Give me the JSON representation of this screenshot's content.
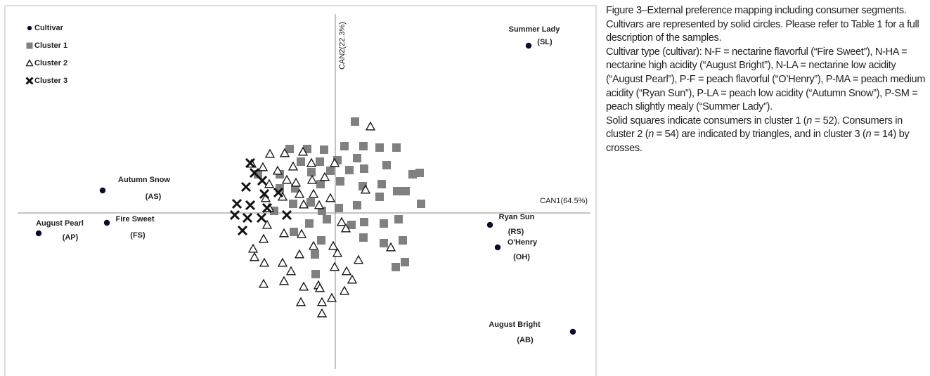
{
  "chart_data": {
    "type": "scatter",
    "xlabel": "CAN1(64.5%)",
    "ylabel": "CAN2(22.3%)",
    "xlim": [
      -4.52,
      3.63
    ],
    "ylim": [
      -2.22,
      2.83
    ],
    "legend": "upper left",
    "series": [
      {
        "name": "Cultivar",
        "marker": "circle",
        "color": "#0b0b2e",
        "x": [
          2.75,
          -3.31,
          -4.22,
          -3.25,
          2.2,
          2.31,
          3.38
        ],
        "y": [
          2.38,
          0.32,
          -0.29,
          -0.14,
          -0.17,
          -0.49,
          -1.69
        ],
        "labels": [
          "Summer Lady",
          "Autumn Snow",
          "August Pearl",
          "Fire Sweet",
          "Ryan Sun",
          "O'Henry",
          "August Bright"
        ],
        "abbreviations": [
          "(SL)",
          "(AS)",
          "(AP)",
          "(FS)",
          "(RS)",
          "(OH)",
          "(AB)"
        ]
      },
      {
        "name": "Cluster 1",
        "marker": "square",
        "color": "#808080",
        "x": [
          0.28,
          -0.65,
          -0.4,
          -0.16,
          0.13,
          0.4,
          0.63,
          0.87,
          -0.49,
          -0.22,
          0.03,
          0.31,
          0.41,
          0.73,
          1.1,
          1.2,
          -1.1,
          -0.79,
          -0.34,
          -0.07,
          0.2,
          0.66,
          0.88,
          1.0,
          -0.79,
          -0.57,
          -0.21,
          0.07,
          0.39,
          0.63,
          1.22,
          -0.87,
          -0.6,
          -0.35,
          -0.19,
          0.05,
          0.31,
          -0.37,
          -0.12,
          0.23,
          0.41,
          0.69,
          0.9,
          -0.59,
          -0.2,
          0.4,
          0.69,
          0.96,
          0.99,
          0.86,
          -0.28,
          -0.29
        ],
        "y": [
          1.3,
          0.91,
          0.91,
          0.9,
          0.95,
          0.95,
          0.93,
          0.93,
          0.73,
          0.73,
          0.75,
          0.78,
          0.63,
          0.68,
          0.55,
          0.57,
          0.55,
          0.55,
          0.58,
          0.6,
          0.61,
          0.41,
          0.31,
          0.31,
          0.35,
          0.35,
          0.41,
          0.45,
          0.38,
          0.23,
          0.13,
          0.03,
          0.13,
          0.15,
          0.03,
          0.07,
          0.11,
          -0.15,
          -0.09,
          -0.17,
          -0.13,
          -0.15,
          -0.09,
          -0.27,
          -0.39,
          -0.35,
          -0.43,
          -0.39,
          -0.7,
          -0.77,
          -0.87,
          -0.59
        ]
      },
      {
        "name": "Cluster 2",
        "marker": "triangle",
        "color": "#111111",
        "x": [
          0.5,
          -0.93,
          -0.72,
          -0.46,
          -0.34,
          -1.19,
          -1.03,
          -0.82,
          -0.6,
          -0.01,
          -0.56,
          -0.33,
          -0.15,
          -0.94,
          -0.69,
          0.43,
          -0.51,
          -0.99,
          -0.75,
          -0.45,
          -0.94,
          -0.31,
          -0.23,
          -0.07,
          -0.97,
          -0.73,
          -0.48,
          0.09,
          0.15,
          -1.02,
          -1.17,
          -1.15,
          -1.01,
          -0.75,
          -0.51,
          -0.31,
          -0.03,
          0.03,
          -0.63,
          -0.01,
          0.16,
          0.24,
          -1.02,
          -0.73,
          -0.24,
          -0.22,
          -0.45,
          0.13,
          -0.49,
          -0.19,
          -0.05,
          -0.19,
          0.79,
          0.33
        ],
        "y": [
          1.23,
          0.84,
          0.85,
          0.87,
          0.71,
          0.7,
          0.65,
          0.6,
          0.66,
          0.71,
          0.43,
          0.47,
          0.51,
          0.41,
          0.47,
          0.33,
          0.27,
          0.21,
          0.23,
          0.12,
          0.07,
          0.27,
          0.11,
          0.21,
          -0.17,
          -0.29,
          -0.3,
          -0.13,
          -0.22,
          -0.37,
          -0.51,
          -0.63,
          -0.71,
          -0.71,
          -0.59,
          -0.47,
          -0.47,
          -0.57,
          -0.83,
          -0.77,
          -0.83,
          -0.95,
          -1.01,
          -0.97,
          -1.03,
          -1.07,
          -1.05,
          -1.11,
          -1.27,
          -1.27,
          -1.21,
          -1.43,
          -0.49,
          -0.67
        ]
      },
      {
        "name": "Cluster 3",
        "marker": "cross",
        "color": "#111111",
        "x": [
          -1.21,
          -1.15,
          -1.04,
          -1.27,
          -1.01,
          -0.81,
          -1.4,
          -1.21,
          -0.97,
          -0.69,
          -1.43,
          -1.25,
          -1.32,
          -1.05
        ],
        "y": [
          0.71,
          0.57,
          0.46,
          0.37,
          0.27,
          0.29,
          0.13,
          0.11,
          0.07,
          -0.03,
          -0.03,
          -0.07,
          -0.25,
          -0.07
        ]
      }
    ]
  },
  "caption": {
    "title": "Figure 3–External preference mapping including consumer segments.",
    "paragraphs": [
      [
        "Cultivars are represented by solid circles. Please refer to Table 1 for a full description of the samples."
      ],
      [
        "Cultivar type (cultivar): N-F = nectarine flavorful (“Fire Sweet”), N-HA = nectarine high acidity (“August Bright”), N-LA = nectarine low acidity (“August Pearl”), P-F = peach flavorful (“O’Henry”), P-MA = peach medium acidity (“Ryan Sun”), P-LA = peach low acidity (“Autumn Snow”), P-SM = peach slightly mealy (“Summer Lady”)."
      ],
      [
        "Solid squares indicate consumers in cluster 1 (",
        "n",
        " = 52). Consumers in cluster 2 (",
        "n",
        " = 54) are indicated by triangles, and in cluster 3 (",
        "n",
        " = 14) by crosses."
      ]
    ]
  }
}
